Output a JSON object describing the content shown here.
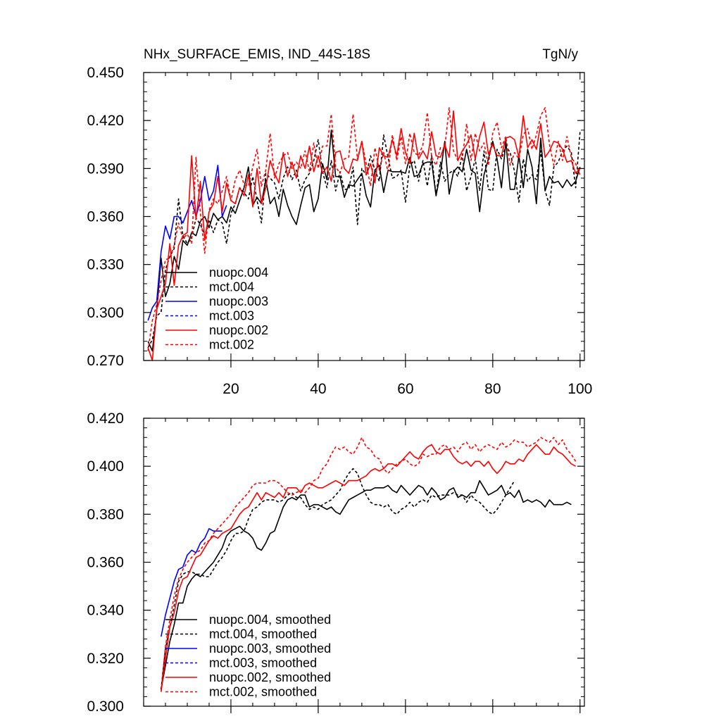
{
  "title_left": "NHx_SURFACE_EMIS, IND_44S-18S",
  "title_right": "TgN/y",
  "chart_data": [
    {
      "type": "line",
      "xlim": [
        0,
        101
      ],
      "ylim": [
        0.27,
        0.45
      ],
      "x_ticks": [
        20,
        40,
        60,
        80,
        100
      ],
      "y_ticks": [
        0.27,
        0.3,
        0.33,
        0.36,
        0.39,
        0.42,
        0.45
      ],
      "y_tick_labels": [
        "0.270",
        "0.300",
        "0.330",
        "0.360",
        "0.390",
        "0.420",
        "0.450"
      ],
      "grid": false,
      "legend_position": "lower-left",
      "series": [
        {
          "name": "nuopc.004",
          "color": "#000000",
          "dash": "solid",
          "start": 1,
          "values": [
            0.282,
            0.276,
            0.301,
            0.334,
            0.31,
            0.318,
            0.335,
            0.327,
            0.345,
            0.342,
            0.35,
            0.348,
            0.357,
            0.36,
            0.353,
            0.362,
            0.358,
            0.36,
            0.356,
            0.366,
            0.362,
            0.37,
            0.378,
            0.391,
            0.367,
            0.372,
            0.368,
            0.383,
            0.368,
            0.372,
            0.36,
            0.377,
            0.367,
            0.36,
            0.355,
            0.367,
            0.378,
            0.38,
            0.363,
            0.371,
            0.393,
            0.383,
            0.414,
            0.385,
            0.385,
            0.372,
            0.38,
            0.379,
            0.383,
            0.387,
            0.373,
            0.366,
            0.389,
            0.392,
            0.375,
            0.389,
            0.388,
            0.388,
            0.388,
            0.387,
            0.397,
            0.385,
            0.386,
            0.393,
            0.394,
            0.394,
            0.373,
            0.387,
            0.407,
            0.374,
            0.388,
            0.391,
            0.388,
            0.402,
            0.389,
            0.387,
            0.363,
            0.386,
            0.396,
            0.407,
            0.396,
            0.378,
            0.407,
            0.377,
            0.377,
            0.398,
            0.378,
            0.402,
            0.391,
            0.368,
            0.409,
            0.376,
            0.385,
            0.381,
            0.382,
            0.378,
            0.383,
            0.379,
            0.382,
            0.391
          ]
        },
        {
          "name": "mct.004",
          "color": "#000000",
          "dash": "dashed",
          "start": 1,
          "values": [
            0.278,
            0.283,
            0.298,
            0.3,
            0.327,
            0.335,
            0.34,
            0.371,
            0.348,
            0.343,
            0.347,
            0.359,
            0.355,
            0.348,
            0.358,
            0.35,
            0.358,
            0.356,
            0.343,
            0.362,
            0.368,
            0.378,
            0.375,
            0.371,
            0.385,
            0.37,
            0.356,
            0.387,
            0.384,
            0.381,
            0.371,
            0.384,
            0.391,
            0.383,
            0.389,
            0.376,
            0.383,
            0.387,
            0.395,
            0.408,
            0.388,
            0.378,
            0.395,
            0.376,
            0.388,
            0.377,
            0.377,
            0.391,
            0.355,
            0.39,
            0.386,
            0.398,
            0.389,
            0.382,
            0.411,
            0.397,
            0.384,
            0.385,
            0.389,
            0.369,
            0.392,
            0.395,
            0.382,
            0.395,
            0.379,
            0.398,
            0.373,
            0.394,
            0.382,
            0.387,
            0.389,
            0.385,
            0.399,
            0.376,
            0.385,
            0.396,
            0.376,
            0.401,
            0.377,
            0.376,
            0.402,
            0.396,
            0.404,
            0.4,
            0.388,
            0.369,
            0.396,
            0.382,
            0.386,
            0.383,
            0.401,
            0.376,
            0.367,
            0.391,
            0.394,
            0.401,
            0.404,
            0.4,
            0.378,
            0.413
          ]
        },
        {
          "name": "nuopc.003",
          "color": "#0000ff",
          "dash": "solid",
          "start": 1,
          "values": [
            0.295,
            0.303,
            0.307,
            0.338,
            0.354,
            0.346,
            0.36,
            0.36,
            0.356,
            0.363,
            0.37,
            0.36,
            0.37,
            0.385,
            0.37,
            0.376,
            0.392,
            0.36,
            0.367
          ]
        },
        {
          "name": "mct.003",
          "color": "#0000ff",
          "dash": "dashed",
          "start": 1,
          "values": []
        },
        {
          "name": "nuopc.002",
          "color": "#ff0000",
          "dash": "solid",
          "start": 1,
          "values": [
            0.278,
            0.27,
            0.302,
            0.31,
            0.318,
            0.343,
            0.317,
            0.342,
            0.348,
            0.35,
            0.398,
            0.358,
            0.382,
            0.345,
            0.363,
            0.368,
            0.385,
            0.363,
            0.381,
            0.37,
            0.368,
            0.378,
            0.373,
            0.386,
            0.366,
            0.39,
            0.368,
            0.378,
            0.395,
            0.387,
            0.381,
            0.4,
            0.385,
            0.394,
            0.384,
            0.398,
            0.39,
            0.404,
            0.388,
            0.398,
            0.387,
            0.391,
            0.382,
            0.4,
            0.401,
            0.39,
            0.387,
            0.396,
            0.395,
            0.407,
            0.386,
            0.393,
            0.381,
            0.403,
            0.398,
            0.397,
            0.408,
            0.398,
            0.415,
            0.4,
            0.393,
            0.412,
            0.396,
            0.401,
            0.396,
            0.413,
            0.398,
            0.397,
            0.405,
            0.397,
            0.426,
            0.395,
            0.401,
            0.405,
            0.411,
            0.396,
            0.41,
            0.419,
            0.399,
            0.405,
            0.398,
            0.398,
            0.409,
            0.41,
            0.408,
            0.397,
            0.423,
            0.403,
            0.408,
            0.402,
            0.418,
            0.397,
            0.401,
            0.407,
            0.406,
            0.402,
            0.394,
            0.395,
            0.387,
            0.39
          ]
        },
        {
          "name": "mct.002",
          "color": "#ff0000",
          "dash": "dashed",
          "start": 1,
          "values": [
            0.276,
            0.295,
            0.305,
            0.32,
            0.333,
            0.334,
            0.342,
            0.356,
            0.346,
            0.349,
            0.343,
            0.397,
            0.362,
            0.337,
            0.364,
            0.371,
            0.368,
            0.376,
            0.385,
            0.37,
            0.383,
            0.389,
            0.38,
            0.379,
            0.391,
            0.402,
            0.379,
            0.389,
            0.412,
            0.384,
            0.393,
            0.398,
            0.4,
            0.39,
            0.394,
            0.39,
            0.401,
            0.388,
            0.406,
            0.39,
            0.404,
            0.404,
            0.424,
            0.391,
            0.387,
            0.396,
            0.397,
            0.424,
            0.396,
            0.407,
            0.393,
            0.379,
            0.403,
            0.389,
            0.4,
            0.388,
            0.411,
            0.395,
            0.41,
            0.393,
            0.412,
            0.4,
            0.398,
            0.405,
            0.425,
            0.397,
            0.392,
            0.403,
            0.403,
            0.428,
            0.401,
            0.395,
            0.396,
            0.418,
            0.395,
            0.412,
            0.401,
            0.406,
            0.392,
            0.412,
            0.419,
            0.403,
            0.41,
            0.392,
            0.4,
            0.396,
            0.411,
            0.415,
            0.402,
            0.411,
            0.423,
            0.428,
            0.405,
            0.392,
            0.407,
            0.395,
            0.41,
            0.397,
            0.393,
            0.386
          ]
        }
      ]
    },
    {
      "type": "line",
      "xlim": [
        0,
        101
      ],
      "ylim": [
        0.3,
        0.42
      ],
      "x_ticks": [
        20,
        40,
        60,
        80,
        100
      ],
      "y_ticks": [
        0.3,
        0.32,
        0.34,
        0.36,
        0.38,
        0.4,
        0.42
      ],
      "y_tick_labels": [
        "0.300",
        "0.320",
        "0.340",
        "0.360",
        "0.380",
        "0.400",
        "0.420"
      ],
      "grid": false,
      "legend_position": "lower-left",
      "series": [
        {
          "name": "nuopc.004, smoothed",
          "color": "#000000",
          "dash": "solid",
          "start": 4,
          "values": [
            0.307,
            0.317,
            0.327,
            0.334,
            0.343,
            0.343,
            0.35,
            0.353,
            0.355,
            0.354,
            0.356,
            0.358,
            0.36,
            0.363,
            0.366,
            0.371,
            0.373,
            0.374,
            0.375,
            0.373,
            0.372,
            0.37,
            0.366,
            0.365,
            0.368,
            0.372,
            0.373,
            0.378,
            0.383,
            0.386,
            0.387,
            0.386,
            0.388,
            0.388,
            0.383,
            0.384,
            0.384,
            0.383,
            0.382,
            0.383,
            0.381,
            0.38,
            0.383,
            0.386,
            0.387,
            0.388,
            0.389,
            0.39,
            0.39,
            0.391,
            0.391,
            0.391,
            0.392,
            0.39,
            0.389,
            0.392,
            0.39,
            0.388,
            0.39,
            0.392,
            0.391,
            0.388,
            0.391,
            0.389,
            0.386,
            0.387,
            0.39,
            0.391,
            0.387,
            0.388,
            0.387,
            0.389,
            0.389,
            0.394,
            0.391,
            0.388,
            0.389,
            0.39,
            0.392,
            0.388,
            0.389,
            0.387,
            0.39,
            0.385,
            0.386,
            0.385,
            0.386,
            0.385,
            0.383,
            0.386,
            0.384,
            0.384,
            0.384,
            0.385,
            0.384
          ]
        },
        {
          "name": "mct.004, smoothed",
          "color": "#000000",
          "dash": "dashed",
          "start": 4,
          "values": [
            0.307,
            0.324,
            0.333,
            0.342,
            0.352,
            0.355,
            0.356,
            0.356,
            0.355,
            0.355,
            0.354,
            0.354,
            0.357,
            0.36,
            0.362,
            0.365,
            0.369,
            0.372,
            0.372,
            0.373,
            0.378,
            0.382,
            0.383,
            0.385,
            0.386,
            0.386,
            0.386,
            0.385,
            0.386,
            0.388,
            0.389,
            0.387,
            0.387,
            0.384,
            0.382,
            0.383,
            0.382,
            0.384,
            0.385,
            0.386,
            0.388,
            0.39,
            0.394,
            0.397,
            0.399,
            0.397,
            0.392,
            0.388,
            0.385,
            0.384,
            0.384,
            0.383,
            0.384,
            0.381,
            0.38,
            0.382,
            0.383,
            0.385,
            0.383,
            0.385,
            0.386,
            0.385,
            0.388,
            0.387,
            0.388,
            0.388,
            0.388,
            0.389,
            0.388,
            0.388,
            0.385,
            0.388,
            0.386,
            0.385,
            0.383,
            0.381,
            0.38,
            0.382,
            0.385,
            0.388,
            0.391,
            0.394
          ]
        },
        {
          "name": "nuopc.003, smoothed",
          "color": "#0000ff",
          "dash": "solid",
          "start": 4,
          "values": [
            0.329,
            0.338,
            0.345,
            0.352,
            0.357,
            0.358,
            0.363,
            0.365,
            0.364,
            0.368,
            0.37,
            0.374,
            0.373,
            0.373,
            0.373
          ]
        },
        {
          "name": "mct.003, smoothed",
          "color": "#0000ff",
          "dash": "dashed",
          "start": 4,
          "values": []
        },
        {
          "name": "nuopc.002, smoothed",
          "color": "#ff0000",
          "dash": "solid",
          "start": 4,
          "values": [
            0.306,
            0.32,
            0.333,
            0.339,
            0.348,
            0.353,
            0.354,
            0.358,
            0.362,
            0.363,
            0.366,
            0.369,
            0.371,
            0.37,
            0.372,
            0.373,
            0.374,
            0.377,
            0.38,
            0.382,
            0.383,
            0.386,
            0.389,
            0.386,
            0.389,
            0.388,
            0.387,
            0.389,
            0.387,
            0.391,
            0.391,
            0.391,
            0.389,
            0.392,
            0.393,
            0.392,
            0.391,
            0.391,
            0.392,
            0.393,
            0.394,
            0.393,
            0.392,
            0.394,
            0.394,
            0.394,
            0.395,
            0.396,
            0.398,
            0.399,
            0.398,
            0.399,
            0.401,
            0.401,
            0.4,
            0.402,
            0.404,
            0.406,
            0.404,
            0.403,
            0.406,
            0.408,
            0.409,
            0.406,
            0.405,
            0.407,
            0.407,
            0.404,
            0.402,
            0.401,
            0.402,
            0.4,
            0.402,
            0.402,
            0.4,
            0.402,
            0.399,
            0.397,
            0.399,
            0.402,
            0.401,
            0.401,
            0.403,
            0.402,
            0.405,
            0.407,
            0.409,
            0.407,
            0.405,
            0.405,
            0.408,
            0.406,
            0.405,
            0.403,
            0.401,
            0.4
          ]
        },
        {
          "name": "mct.002, smoothed",
          "color": "#ff0000",
          "dash": "dashed",
          "start": 4,
          "values": [
            0.306,
            0.325,
            0.336,
            0.346,
            0.353,
            0.357,
            0.36,
            0.362,
            0.364,
            0.365,
            0.368,
            0.369,
            0.372,
            0.374,
            0.376,
            0.378,
            0.38,
            0.383,
            0.385,
            0.387,
            0.389,
            0.392,
            0.393,
            0.393,
            0.393,
            0.394,
            0.394,
            0.393,
            0.391,
            0.389,
            0.388,
            0.389,
            0.39,
            0.389,
            0.391,
            0.394,
            0.395,
            0.399,
            0.401,
            0.405,
            0.408,
            0.407,
            0.408,
            0.406,
            0.405,
            0.408,
            0.412,
            0.408,
            0.407,
            0.404,
            0.403,
            0.399,
            0.397,
            0.399,
            0.401,
            0.402,
            0.403,
            0.401,
            0.4,
            0.401,
            0.405,
            0.404,
            0.405,
            0.405,
            0.408,
            0.409,
            0.407,
            0.408,
            0.406,
            0.409,
            0.41,
            0.407,
            0.409,
            0.406,
            0.408,
            0.409,
            0.408,
            0.407,
            0.41,
            0.408,
            0.409,
            0.411,
            0.41,
            0.41,
            0.408,
            0.409,
            0.41,
            0.412,
            0.411,
            0.41,
            0.412,
            0.409,
            0.411,
            0.407,
            0.405,
            0.402
          ]
        }
      ]
    }
  ]
}
